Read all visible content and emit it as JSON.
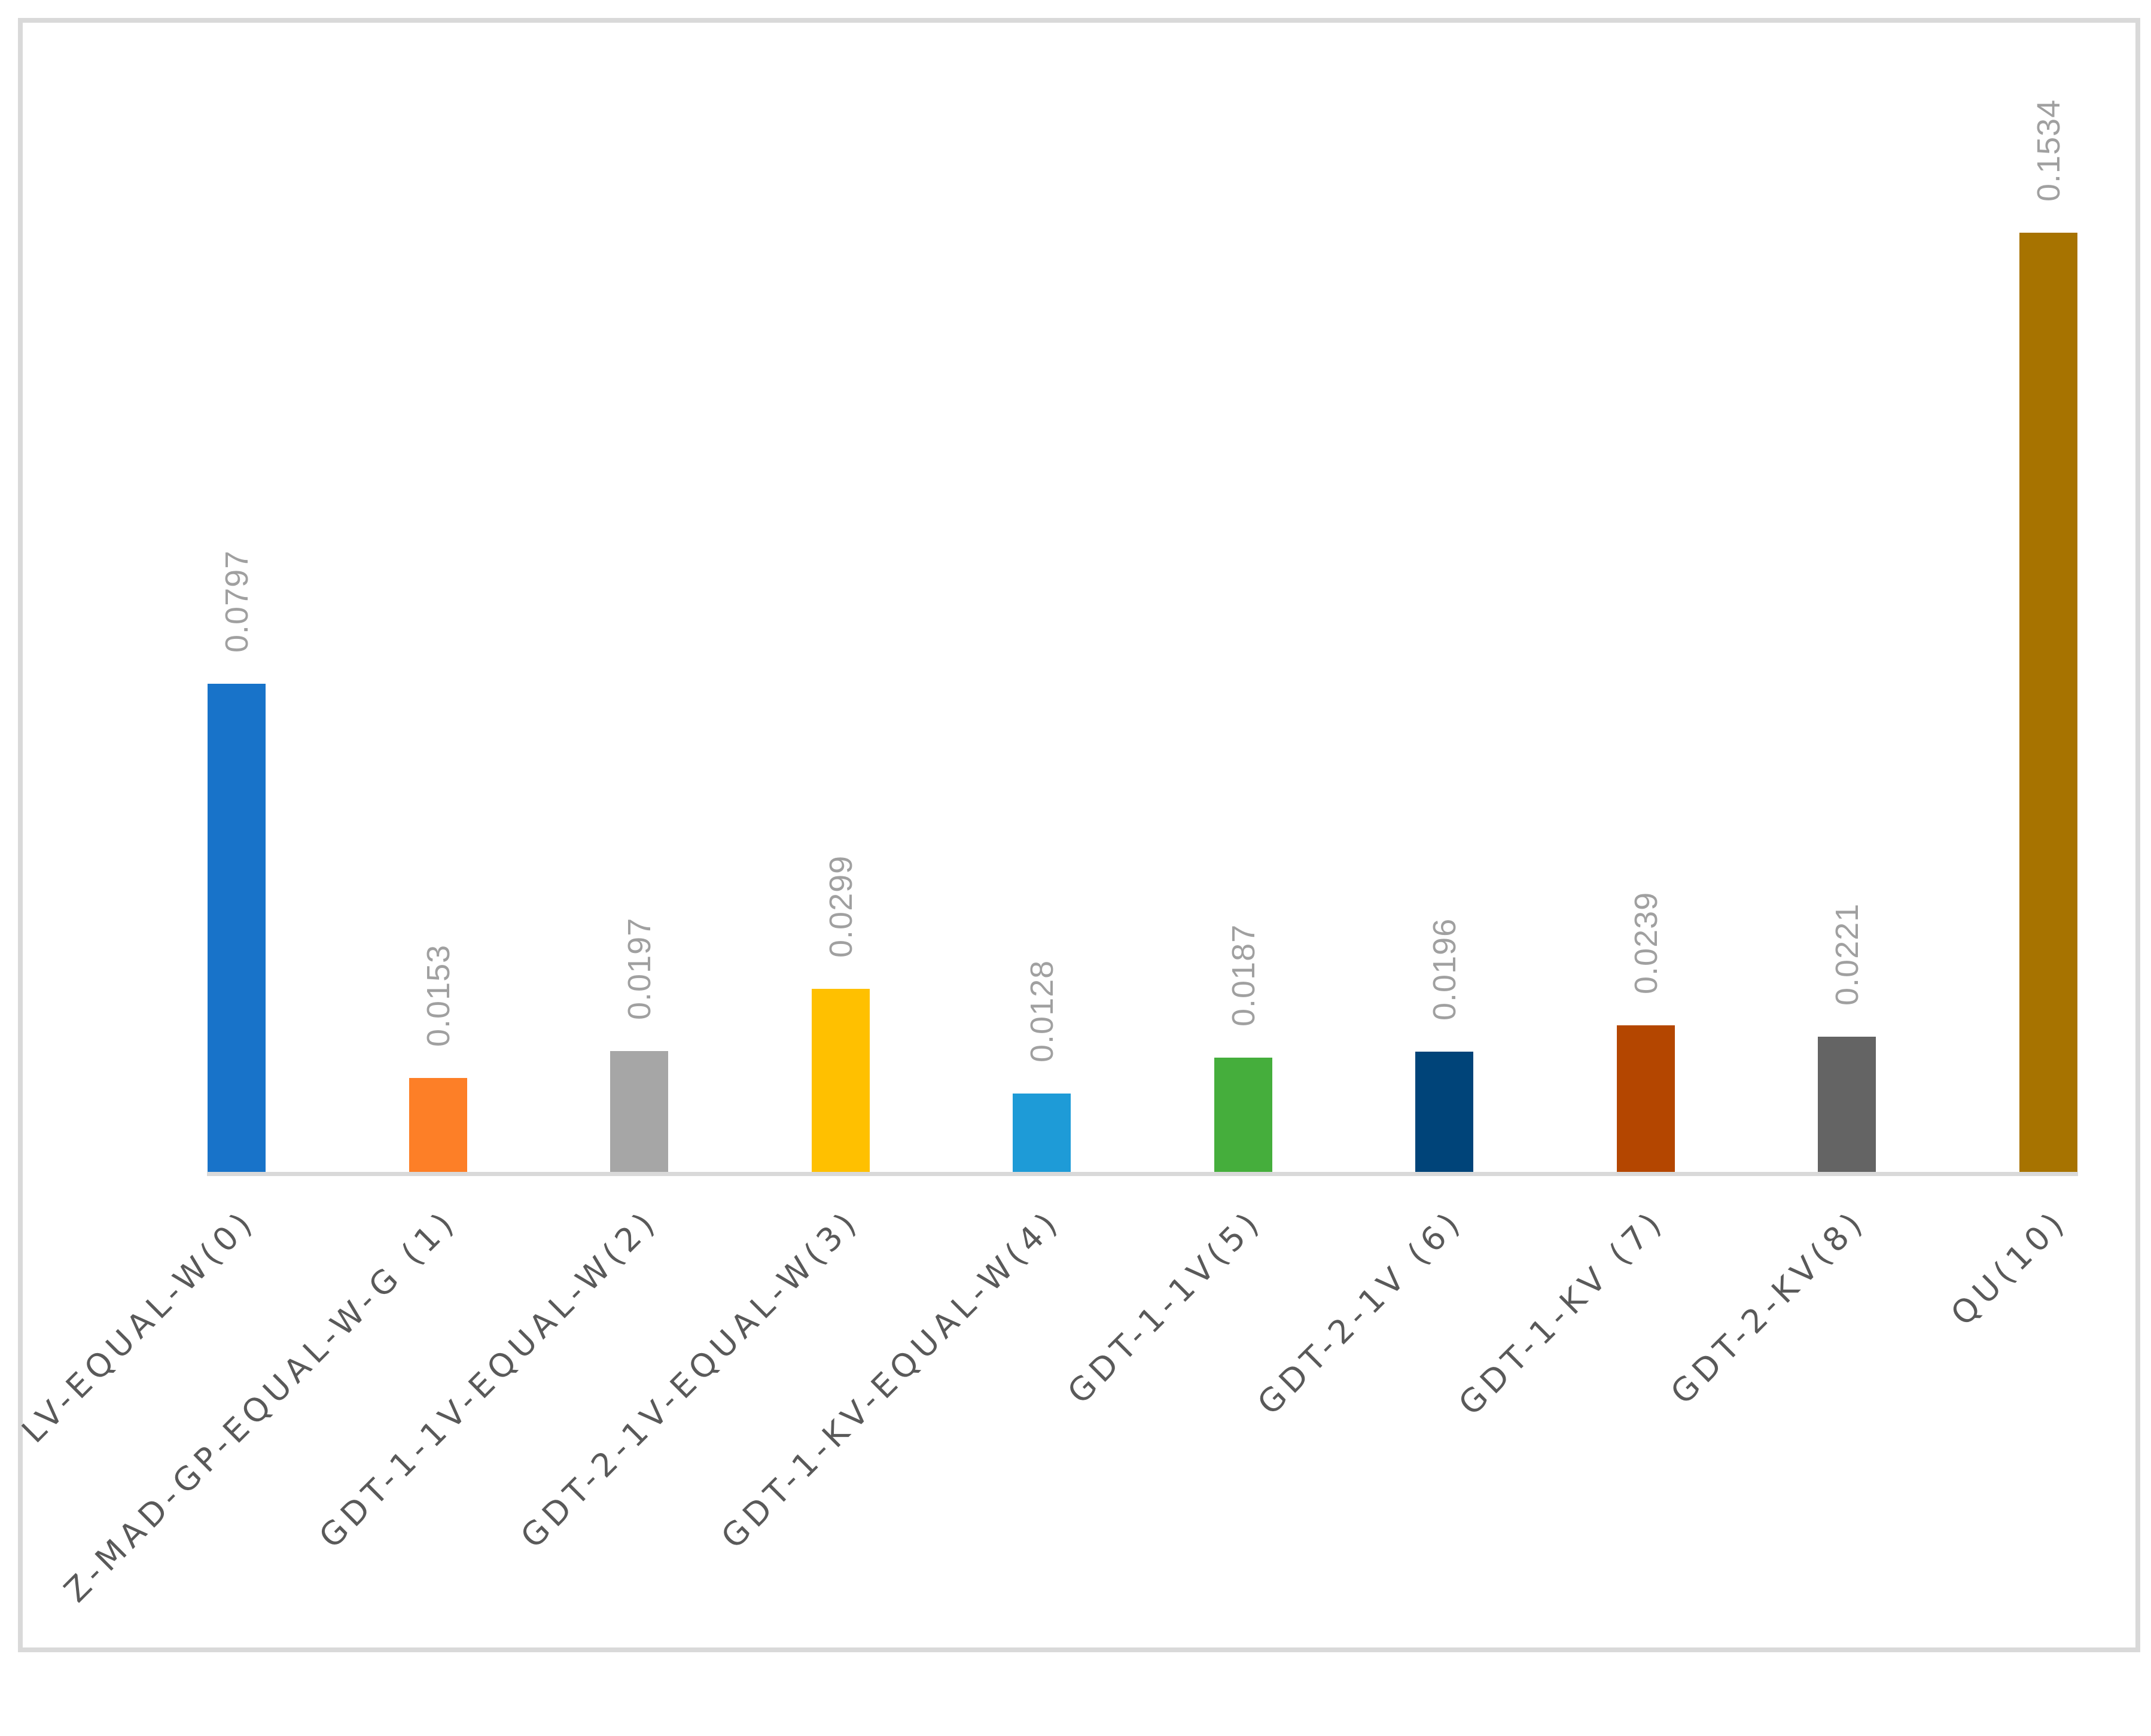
{
  "chart_data": {
    "type": "bar",
    "title": "",
    "xlabel": "",
    "ylabel": "",
    "ylim": [
      0,
      0.16
    ],
    "grid": false,
    "legend": null,
    "data_labels": true,
    "categories": [
      "LV-EQUAL-W(0)",
      "Z-MAD-GP-EQUAL-W-G (1)",
      "GDT-1-1V-EQUAL-W(2)",
      "GDT-2-1V-EQUAL-W(3)",
      "GDT-1-KV-EQUAL-W(4)",
      "GDT-1-1V(5)",
      "GDT-2-1V (6)",
      "GDT-1-KV (7)",
      "GDT-2-KV(8)",
      "QU(10)"
    ],
    "values": [
      0.0797,
      0.0153,
      0.0197,
      0.0299,
      0.0128,
      0.0187,
      0.0196,
      0.0239,
      0.0221,
      0.1534
    ],
    "labels": [
      "0.0797",
      "0.0153",
      "0.0197",
      "0.0299",
      "0.0128",
      "0.0187",
      "0.0196",
      "0.0239",
      "0.0221",
      "0.1534"
    ],
    "colors": [
      "#1873C9",
      "#FD7F27",
      "#A6A6A6",
      "#FFC000",
      "#1E9BD7",
      "#45AE3C",
      "#004479",
      "#B44600",
      "#646464",
      "#A77300"
    ]
  }
}
